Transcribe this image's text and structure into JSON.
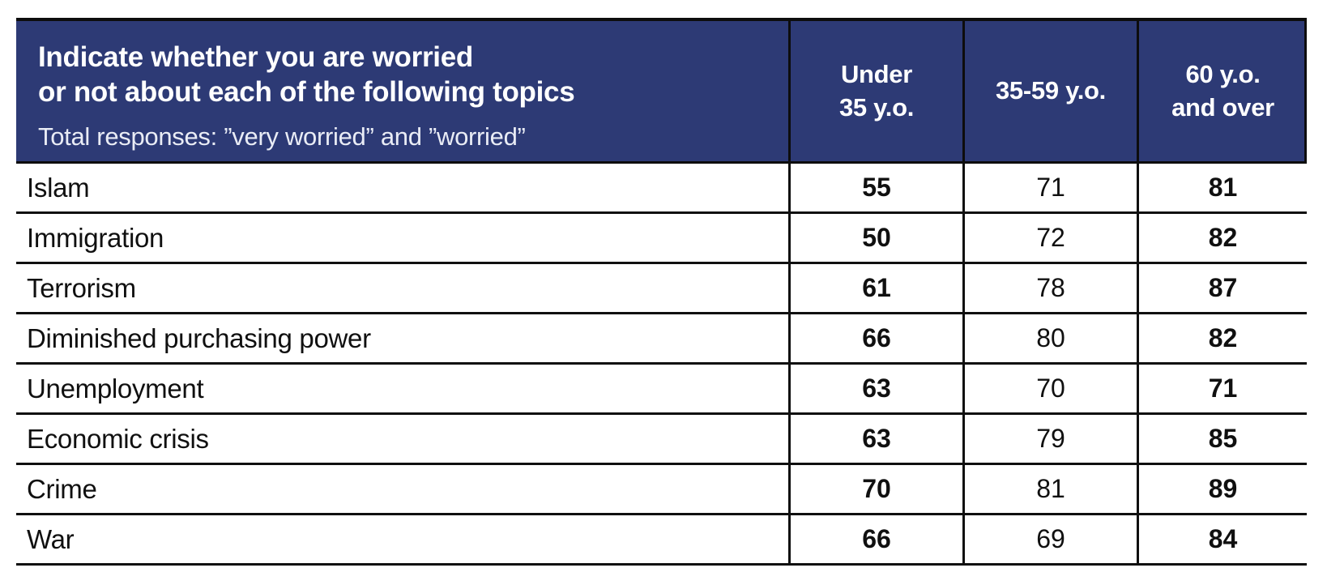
{
  "chart_data": {
    "type": "table",
    "title": "Indicate whether you are worried or not about each of the following topics",
    "subtitle": "Total responses: ”very worried” and ”worried”",
    "categories": [
      "Islam",
      "Immigration",
      "Terrorism",
      "Diminished purchasing power",
      "Unemployment",
      "Economic crisis",
      "Crime",
      "War"
    ],
    "series": [
      {
        "name": "Under 35 y.o.",
        "values": [
          55,
          50,
          61,
          66,
          63,
          63,
          70,
          66
        ]
      },
      {
        "name": "35-59 y.o.",
        "values": [
          71,
          72,
          78,
          80,
          70,
          79,
          81,
          69
        ]
      },
      {
        "name": "60 y.o. and over",
        "values": [
          81,
          82,
          87,
          82,
          71,
          85,
          89,
          84
        ]
      }
    ]
  },
  "header": {
    "title_line1": "Indicate whether you are worried",
    "title_line2": "or not about each of the following topics",
    "subtitle": "Total responses: ”very worried” and ”worried”",
    "col1_line1": "Under",
    "col1_line2": "35 y.o.",
    "col2_line1": "35-59 y.o.",
    "col2_line2": "",
    "col3_line1": "60 y.o.",
    "col3_line2": "and over"
  },
  "rows": [
    {
      "topic": "Islam",
      "c1": "55",
      "c2": "71",
      "c3": "81"
    },
    {
      "topic": "Immigration",
      "c1": "50",
      "c2": "72",
      "c3": "82"
    },
    {
      "topic": "Terrorism",
      "c1": "61",
      "c2": "78",
      "c3": "87"
    },
    {
      "topic": "Diminished purchasing power",
      "c1": "66",
      "c2": "80",
      "c3": "82"
    },
    {
      "topic": "Unemployment",
      "c1": "63",
      "c2": "70",
      "c3": "71"
    },
    {
      "topic": "Economic crisis",
      "c1": "63",
      "c2": "79",
      "c3": "85"
    },
    {
      "topic": "Crime",
      "c1": "70",
      "c2": "81",
      "c3": "89"
    },
    {
      "topic": "War",
      "c1": "66",
      "c2": "69",
      "c3": "84"
    }
  ],
  "colors": {
    "header_bg": "#2D3A75",
    "header_text": "#FFFFFF",
    "subtitle_text": "#E9ECF5",
    "border": "#101010",
    "body_text": "#101010",
    "body_bg": "#FFFFFF"
  }
}
